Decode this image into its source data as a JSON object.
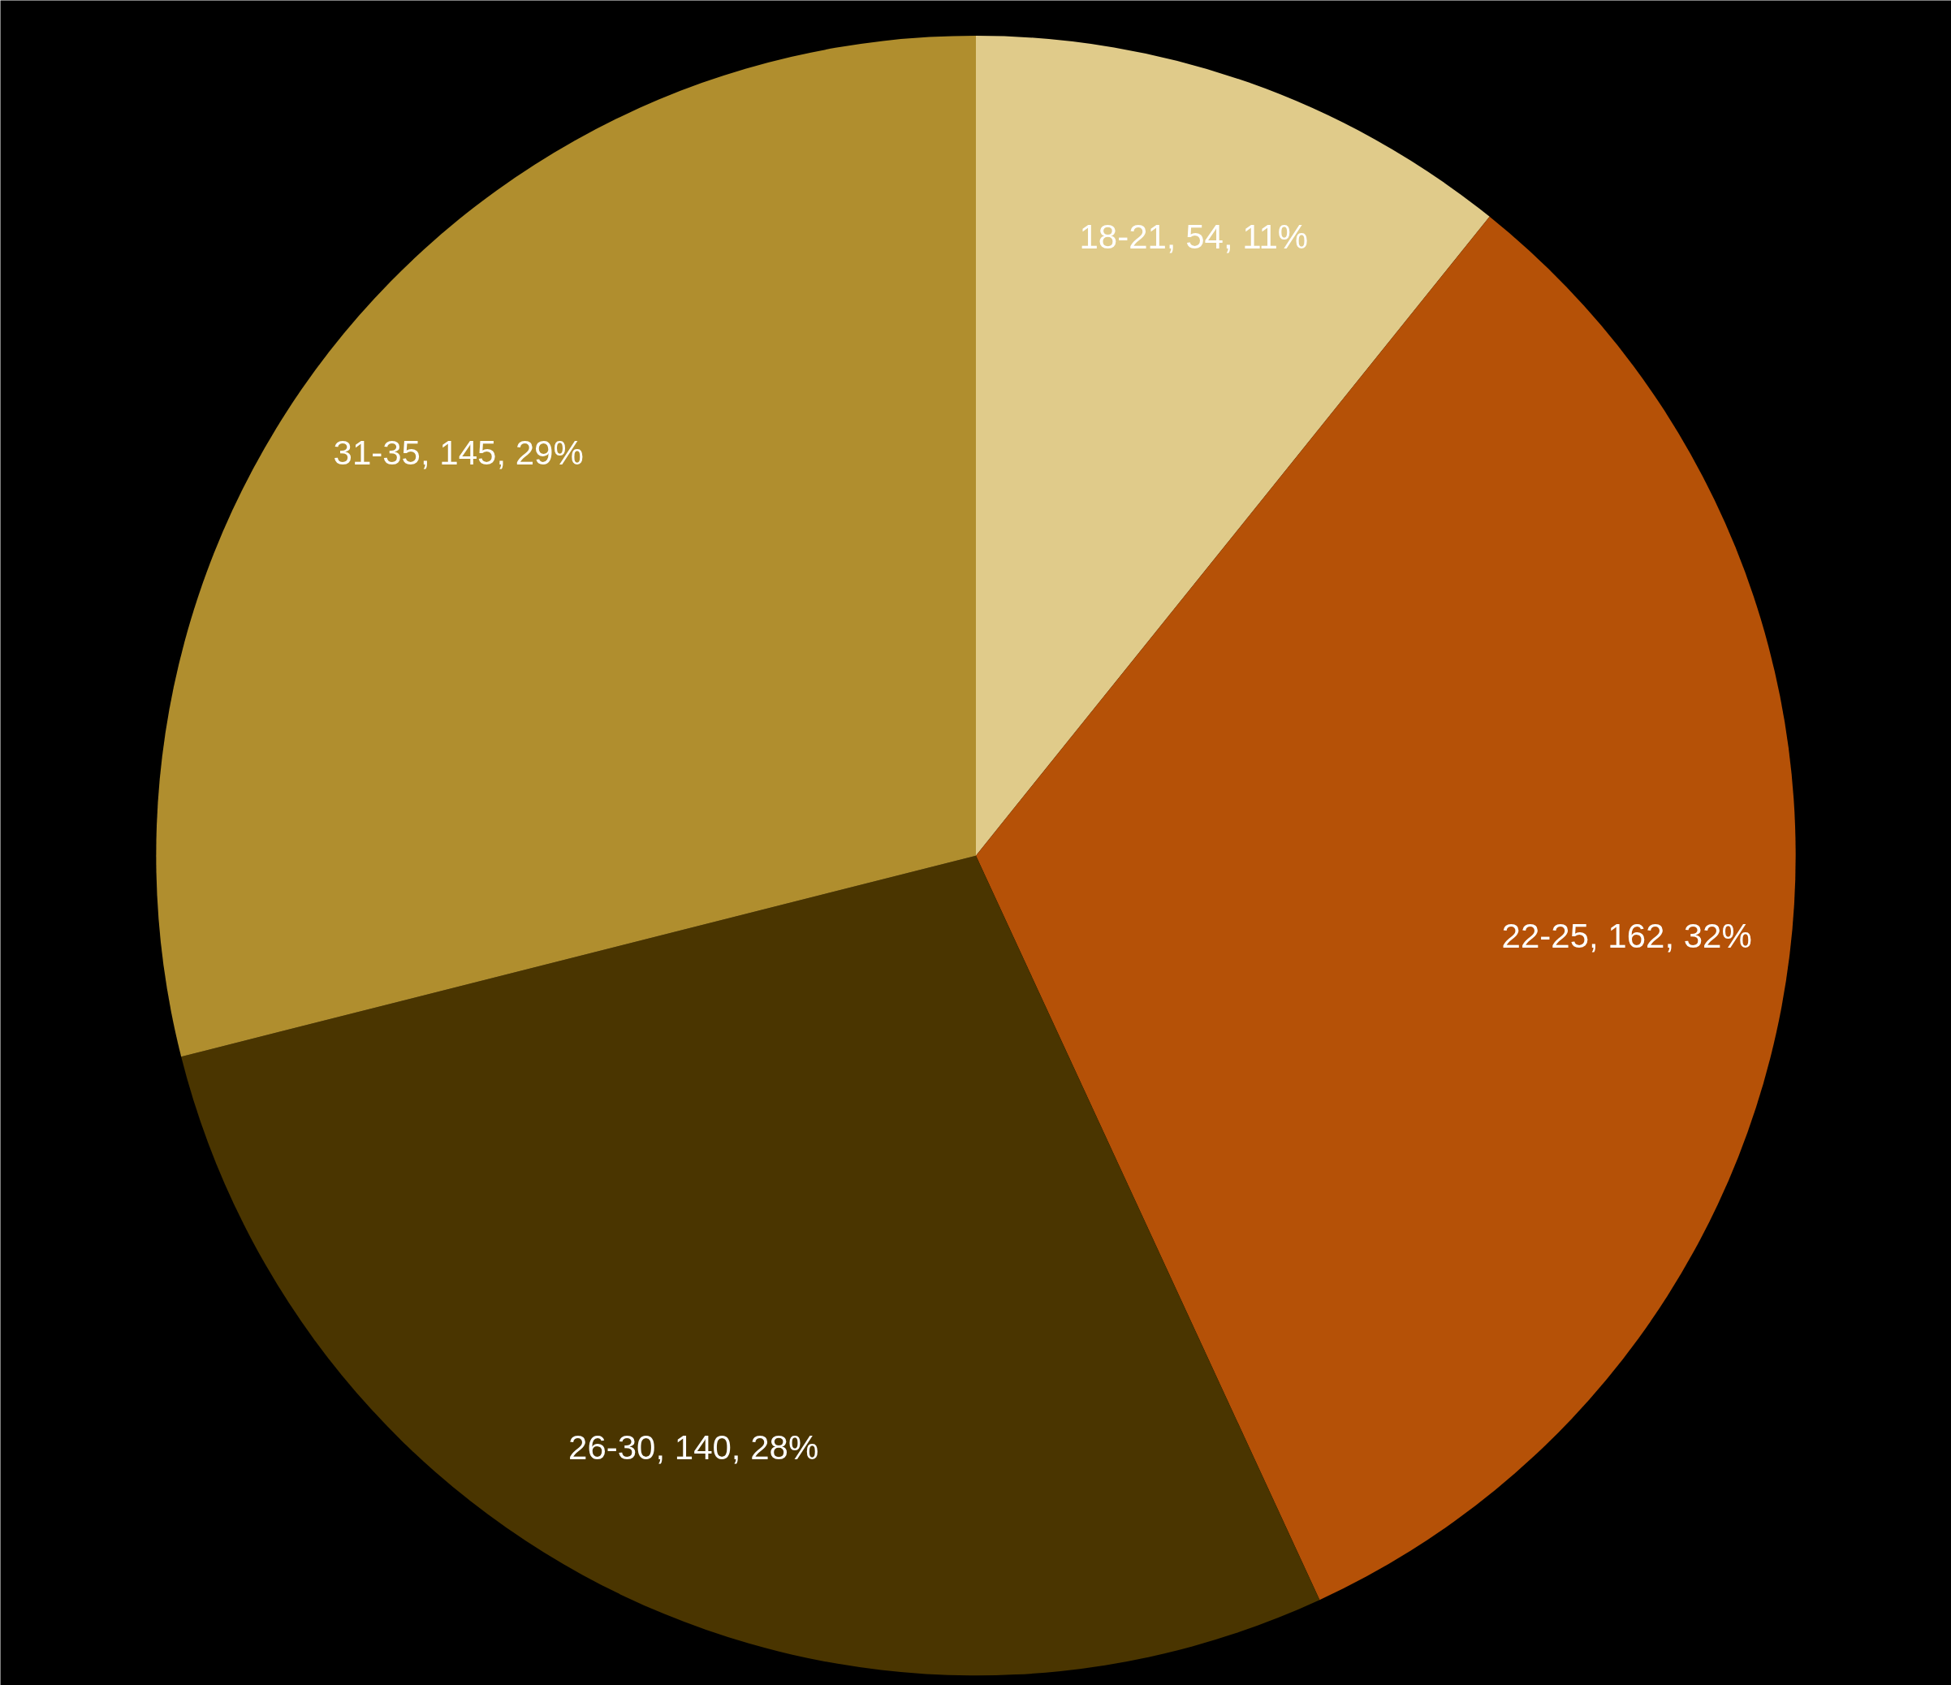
{
  "chart_data": {
    "type": "pie",
    "categories": [
      "18-21, 54, 11%",
      "22-25, 162, 32%",
      "26-30, 140, 28%",
      "31-35, 145, 29%"
    ],
    "values": [
      54,
      162,
      140,
      145
    ],
    "colors": [
      "#e0cb8a",
      "#b55107",
      "#4a3500",
      "#b08e2e"
    ]
  }
}
